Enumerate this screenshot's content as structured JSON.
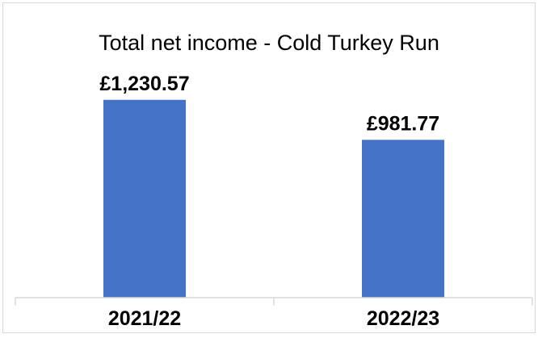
{
  "chart_data": {
    "type": "bar",
    "title": "Total net income - Cold Turkey Run",
    "xlabel": "",
    "ylabel": "",
    "categories": [
      "2021/22",
      "2022/23"
    ],
    "values": [
      1230.57,
      981.77
    ],
    "data_labels": [
      "£1,230.57",
      "£981.77"
    ],
    "ylim": [
      0,
      1400
    ],
    "grid": false,
    "legend": "none",
    "bar_color": "#4472C4"
  }
}
